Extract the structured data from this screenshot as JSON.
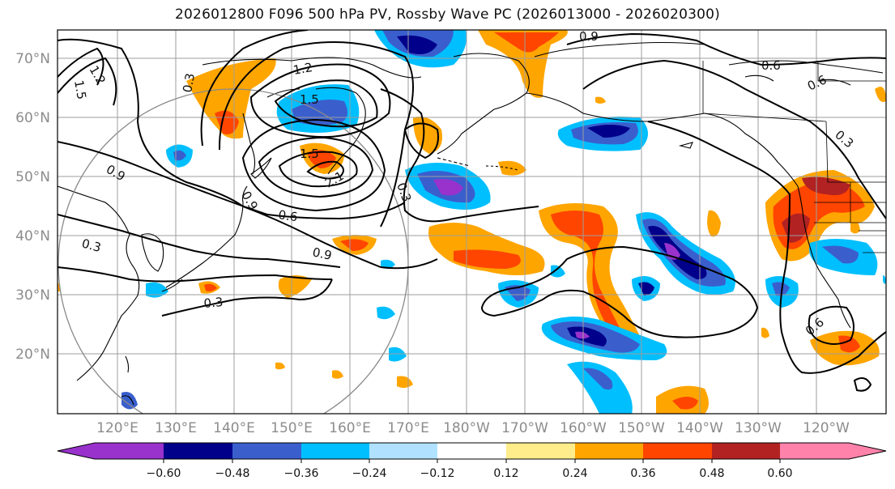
{
  "title": "2026012800 F096 500 hPa PV, Rossby Wave PC (2026013000 - 2026020300)",
  "lat_ticks": [
    "70°N",
    "60°N",
    "50°N",
    "40°N",
    "30°N",
    "20°N"
  ],
  "lon_ticks": [
    "120°E",
    "130°E",
    "140°E",
    "150°E",
    "160°E",
    "170°E",
    "180°W",
    "170°W",
    "160°W",
    "150°W",
    "140°W",
    "130°W",
    "120°W"
  ],
  "colorbar": {
    "tick_labels": [
      "−0.60",
      "−0.48",
      "−0.36",
      "−0.24",
      "−0.12",
      "0.12",
      "0.24",
      "0.36",
      "0.48",
      "0.60"
    ],
    "colors": [
      "#9932cc",
      "#00008b",
      "#3a5fcd",
      "#00bfff",
      "#b0e2ff",
      "#ffffff",
      "#ffec8b",
      "#ffa500",
      "#ff4500",
      "#b22222",
      "#ff82ab"
    ]
  },
  "contour_labels": [
    "1.2",
    "1.5",
    "0.9",
    "0.6",
    "0.3",
    "1.2",
    "1.5",
    "1.5",
    "0.9",
    "0.6",
    "0.9",
    "0.3",
    "0.3",
    "0.3",
    "0.9",
    "0.6",
    "0.3",
    "0.6",
    "2.1"
  ]
}
